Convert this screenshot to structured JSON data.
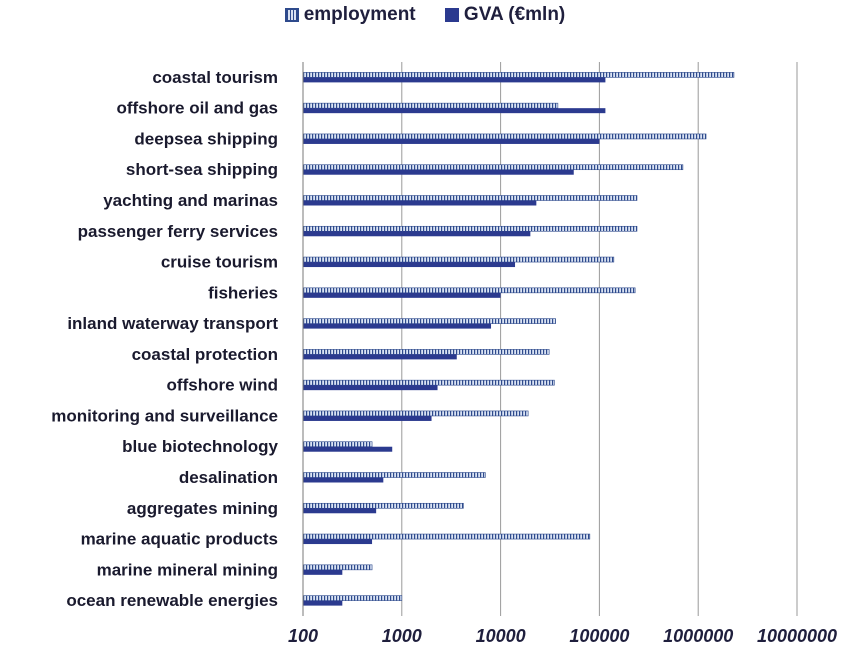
{
  "chart_data": {
    "type": "bar",
    "orientation": "horizontal",
    "x_scale": "log",
    "xlim": [
      100,
      10000000
    ],
    "x_ticks": [
      "100",
      "1000",
      "10000",
      "100000",
      "1000000",
      "10000000"
    ],
    "grid": "vertical",
    "legend_position": "top",
    "categories": [
      "coastal tourism",
      "offshore oil and gas",
      "deepsea shipping",
      "short-sea shipping",
      "yachting and marinas",
      "passenger ferry services",
      "cruise tourism",
      "fisheries",
      "inland waterway transport",
      "coastal protection",
      "offshore wind",
      "monitoring and surveillance",
      "blue biotechnology",
      "desalination",
      "aggregates mining",
      "marine aquatic products",
      "marine mineral mining",
      "ocean renewable energies"
    ],
    "series": [
      {
        "name": "employment",
        "color": "#2e4a8c",
        "pattern": "hatched",
        "values": [
          2300000,
          38000,
          1200000,
          700000,
          240000,
          240000,
          140000,
          230000,
          36000,
          31000,
          35000,
          19000,
          500,
          7000,
          4200,
          80000,
          500,
          1000
        ]
      },
      {
        "name": "GVA (€mln)",
        "color": "#2b3a8f",
        "pattern": "solid",
        "values": [
          115000,
          115000,
          100000,
          55000,
          23000,
          20000,
          14000,
          10000,
          8000,
          3600,
          2300,
          2000,
          800,
          650,
          550,
          500,
          250,
          250
        ]
      }
    ]
  }
}
